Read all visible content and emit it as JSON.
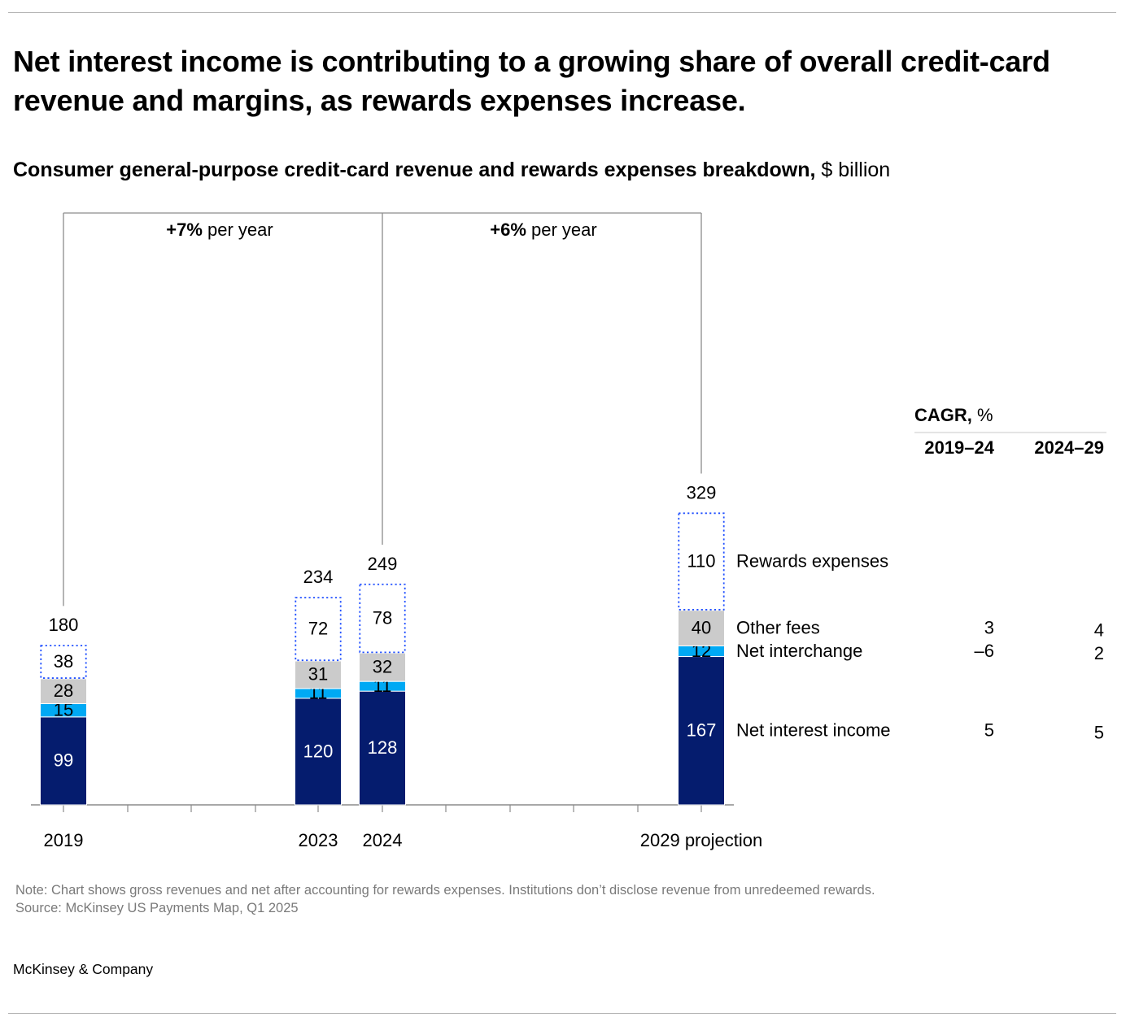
{
  "title": "Net interest income is contributing to a growing share of overall credit-card revenue and margins, as rewards expenses increase.",
  "subtitle": {
    "bold": "Consumer general-purpose credit-card revenue and rewards expenses breakdown,",
    "unit": " $ billion"
  },
  "colors": {
    "net_interest_income": "#051c6e",
    "net_interchange": "#00a9f4",
    "other_fees": "#cbcbcb",
    "rewards_outline": "#2251ff",
    "axis": "#8c8c8c",
    "bracket": "#8c8c8c"
  },
  "chart_data": {
    "type": "bar",
    "stacked": true,
    "unit": "$ billion",
    "categories": [
      "2019",
      "2023",
      "2024",
      "2029 projection"
    ],
    "series": [
      {
        "name": "Net interest income",
        "key": "net_interest_income",
        "values": [
          99,
          120,
          128,
          167
        ]
      },
      {
        "name": "Net interchange",
        "key": "net_interchange",
        "values": [
          15,
          11,
          11,
          12
        ]
      },
      {
        "name": "Other fees",
        "key": "other_fees",
        "values": [
          28,
          31,
          32,
          40
        ]
      },
      {
        "name": "Rewards expenses",
        "key": "rewards_outline",
        "values": [
          38,
          72,
          78,
          110
        ],
        "style": "dotted-outline"
      }
    ],
    "totals": [
      "180",
      "234",
      "249",
      "329"
    ],
    "growth_brackets": [
      {
        "from": "2019",
        "to": "2024",
        "bold": "+7%",
        "text": " per year"
      },
      {
        "from": "2024",
        "to": "2029 projection",
        "bold": "+6%",
        "text": " per year"
      }
    ],
    "ylim": [
      0,
      340
    ]
  },
  "cagr": {
    "title_bold": "CAGR,",
    "title_unit": " %",
    "columns": [
      "2019–24",
      "2024–29"
    ],
    "rows": [
      {
        "series": "Other fees",
        "values": [
          "3",
          "4"
        ]
      },
      {
        "series": "Net interchange",
        "values": [
          "–6",
          "2"
        ]
      },
      {
        "series": "Net interest income",
        "values": [
          "5",
          "5"
        ]
      }
    ]
  },
  "note": "Note: Chart shows gross revenues and net after accounting for rewards expenses. Institutions don’t disclose revenue from unredeemed rewards.",
  "source": "Source: McKinsey US Payments Map, Q1 2025",
  "brand": "McKinsey & Company"
}
